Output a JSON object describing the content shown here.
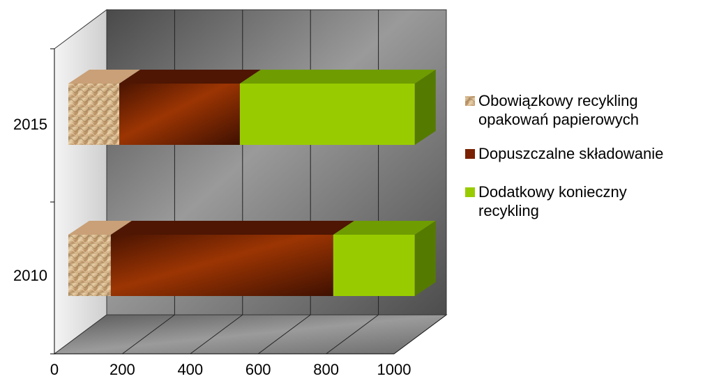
{
  "chart_data": {
    "type": "bar",
    "orientation": "horizontal",
    "stacked": true,
    "three_d": true,
    "categories": [
      "2010",
      "2015"
    ],
    "series": [
      {
        "name": "Obowiązkowy recykling opakowań papierowych",
        "values": [
          125,
          150
        ],
        "color": "#c9a77a"
      },
      {
        "name": "Dopuszczalne składowanie",
        "values": [
          655,
          355
        ],
        "color": "#8b2a05"
      },
      {
        "name": "Dodatkowy konieczny recykling",
        "values": [
          240,
          515
        ],
        "color": "#99cc00"
      }
    ],
    "x_ticks": [
      "0",
      "200",
      "400",
      "600",
      "800",
      "1000"
    ],
    "xlim": [
      0,
      1000
    ],
    "grid": true,
    "legend_position": "right",
    "legend_lines": [
      [
        "Obowiązkowy recykling",
        "opakowań papierowych"
      ],
      [
        "Dopuszczalne składowanie"
      ],
      [
        "Dodatkowy konieczny",
        "recykling"
      ]
    ]
  }
}
